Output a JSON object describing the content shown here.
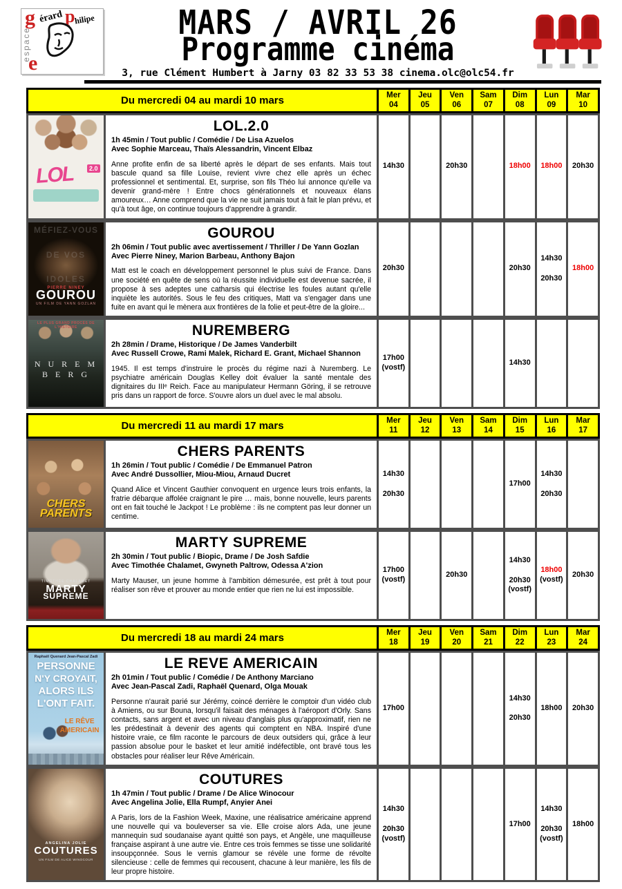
{
  "header": {
    "title_line1": "MARS / AVRIL 26",
    "title_line2": "Programme cinéma",
    "address": "3, rue Clément Humbert à Jarny  03 82 33 53 38  cinema.olc@olc54.fr",
    "logo": {
      "g": "g",
      "erard": "érard",
      "p": "p",
      "hilipe": "hilipe",
      "vertical": "espace",
      "e": "e"
    }
  },
  "colors": {
    "highlight_yellow": "#ffff00",
    "time_red": "#ee0000",
    "grid_gray": "#4e4e4e",
    "seat_red": "#c41a1a"
  },
  "sections": [
    {
      "label": "Du mercredi 04 au mardi 10 mars",
      "days": [
        {
          "abbr": "Mer",
          "num": "04"
        },
        {
          "abbr": "Jeu",
          "num": "05"
        },
        {
          "abbr": "Ven",
          "num": "06"
        },
        {
          "abbr": "Sam",
          "num": "07"
        },
        {
          "abbr": "Dim",
          "num": "08"
        },
        {
          "abbr": "Lun",
          "num": "09"
        },
        {
          "abbr": "Mar",
          "num": "10"
        }
      ],
      "movies": [
        {
          "title": "LOL.2.0",
          "meta": "1h 45min / Tout public / Comédie / De Lisa Azuelos",
          "cast": "Avec Sophie Marceau, Thaïs Alessandrin, Vincent Elbaz",
          "description": "Anne profite enfin de sa liberté après le départ de ses enfants. Mais tout bascule quand sa fille Louise, revient vivre chez elle après un échec professionnel et sentimental. Et, surprise, son fils Théo lui annonce qu'elle va devenir grand-mère ! Entre chocs générationnels et nouveaux élans amoureux… Anne comprend que la vie ne suit jamais tout à fait le plan prévu, et qu'à tout âge, on continue toujours d'apprendre à grandir.",
          "poster": {
            "cls": "p-lol",
            "lines": [
              {
                "cls": "pt-lol-big",
                "text": "LOL"
              },
              {
                "cls": "pt-lol-badge",
                "text": "2.0"
              }
            ]
          },
          "times": [
            [
              {
                "t": "14h30"
              }
            ],
            [],
            [
              {
                "t": "20h30"
              }
            ],
            [],
            [
              {
                "t": "18h00",
                "red": true
              }
            ],
            [
              {
                "t": "18h00",
                "red": true
              }
            ],
            [
              {
                "t": "20h30"
              }
            ]
          ]
        },
        {
          "title": "GOUROU",
          "meta": "2h 06min / Tout public avec avertissement / Thriller / De Yann Gozlan",
          "cast": "Avec Pierre Niney, Marion Barbeau, Anthony Bajon",
          "description": "Matt est le coach en développement personnel le plus suivi de France. Dans une société en quête de sens où la réussite individuelle est devenue sacrée, il propose à ses adeptes une catharsis qui électrise les foules autant qu'elle inquiète les autorités. Sous le feu des critiques, Matt va s'engager dans une fuite en avant qui le mènera aux frontières de la folie et peut-être de la gloire...",
          "poster": {
            "cls": "p-gourou",
            "lines": [
              {
                "cls": "pt-g1",
                "text": "MÉFIEZ-VOUS"
              },
              {
                "cls": "pt-g2",
                "text": "DE VOS"
              },
              {
                "cls": "pt-g3",
                "text": "IDOLES"
              },
              {
                "cls": "pt-g-credit",
                "text": "PIERRE NINEY"
              },
              {
                "cls": "pt-g-title",
                "text": "GOUROU"
              },
              {
                "cls": "pt-g-sub",
                "text": "UN FILM DE YANN GOZLAN"
              }
            ]
          },
          "times": [
            [
              {
                "t": "20h30"
              }
            ],
            [],
            [],
            [],
            [
              {
                "t": "20h30"
              }
            ],
            [
              {
                "t": "14h30"
              },
              {
                "t": "20h30"
              }
            ],
            [
              {
                "t": "18h00",
                "red": true
              }
            ]
          ]
        },
        {
          "title": "NUREMBERG",
          "meta": "2h 28min / Drame, Historique / De James Vanderbilt",
          "cast": "Avec Russell Crowe, Rami Malek, Richard E. Grant, Michael Shannon",
          "description": "1945. Il est temps d'instruire le procès du régime nazi à Nuremberg. Le psychiatre américain Douglas Kelley doit évaluer la santé mentale des dignitaires du IIIᵉ Reich. Face au manipulateur Hermann Göring, il se retrouve pris dans un rapport de force. S'ouvre alors un duel avec le mal absolu.",
          "poster": {
            "cls": "p-nuremberg",
            "lines": [
              {
                "cls": "pt-n-top",
                "text": "LE PLUS GRAND PROCÈS DE L'HISTOIRE"
              },
              {
                "cls": "pt-n-title",
                "text": "N U R E M B E R G"
              }
            ]
          },
          "times": [
            [
              {
                "t": "17h00"
              },
              {
                "t": "(vostf)"
              }
            ],
            [],
            [],
            [],
            [
              {
                "t": "14h30"
              }
            ],
            [],
            []
          ]
        }
      ]
    },
    {
      "label": "Du mercredi 11 au mardi 17 mars",
      "days": [
        {
          "abbr": "Mer",
          "num": "11"
        },
        {
          "abbr": "Jeu",
          "num": "12"
        },
        {
          "abbr": "Ven",
          "num": "13"
        },
        {
          "abbr": "Sam",
          "num": "14"
        },
        {
          "abbr": "Dim",
          "num": "15"
        },
        {
          "abbr": "Lun",
          "num": "16"
        },
        {
          "abbr": "Mar",
          "num": "17"
        }
      ],
      "movies": [
        {
          "title": "CHERS PARENTS",
          "meta": "1h 26min / Tout public / Comédie / De Emmanuel Patron",
          "cast": "Avec André Dussollier, Miou-Miou, Arnaud Ducret",
          "description": "Quand Alice et Vincent Gauthier convoquent en urgence leurs trois enfants, la fratrie débarque affolée craignant le pire … mais, bonne nouvelle, leurs parents ont en fait touché le Jackpot ! Le problème : ils ne comptent pas leur donner un centime.",
          "poster": {
            "cls": "p-chers",
            "lines": [
              {
                "cls": "pt-c1",
                "text": "CHERS"
              },
              {
                "cls": "pt-c2",
                "text": "PARENTS"
              }
            ]
          },
          "times": [
            [
              {
                "t": "14h30"
              },
              {
                "t": "20h30"
              }
            ],
            [],
            [],
            [],
            [
              {
                "t": "17h00"
              }
            ],
            [
              {
                "t": "14h30"
              },
              {
                "t": "20h30"
              }
            ],
            []
          ]
        },
        {
          "title": "MARTY SUPREME",
          "meta": "2h 30min / Tout public / Biopic, Drame / De Josh Safdie",
          "cast": "Avec Timothée Chalamet, Gwyneth Paltrow, Odessa A'zion",
          "description": "Marty Mauser, un jeune homme à l'ambition démesurée, est prêt à tout pour réaliser son rêve et prouver au monde entier que rien ne lui est impossible.",
          "poster": {
            "cls": "p-marty",
            "lines": [
              {
                "cls": "pt-m-credit",
                "text": "TIMOTHÉE CHALAMET"
              },
              {
                "cls": "pt-m1",
                "text": "MARTY"
              },
              {
                "cls": "pt-m2",
                "text": "SUPREME"
              }
            ]
          },
          "times": [
            [
              {
                "t": "17h00"
              },
              {
                "t": "(vostf)"
              }
            ],
            [],
            [
              {
                "t": "20h30"
              }
            ],
            [],
            [
              {
                "t": "14h30"
              },
              {
                "t": "20h30"
              },
              {
                "t": "(vostf)"
              }
            ],
            [
              {
                "t": "18h00",
                "red": true
              },
              {
                "t": "(vostf)"
              }
            ],
            [
              {
                "t": "20h30"
              }
            ]
          ]
        }
      ]
    },
    {
      "label": "Du mercredi 18  au mardi 24 mars",
      "days": [
        {
          "abbr": "Mer",
          "num": "18"
        },
        {
          "abbr": "Jeu",
          "num": "19"
        },
        {
          "abbr": "Ven",
          "num": "20"
        },
        {
          "abbr": "Sam",
          "num": "21"
        },
        {
          "abbr": "Dim",
          "num": "22"
        },
        {
          "abbr": "Lun",
          "num": "23"
        },
        {
          "abbr": "Mar",
          "num": "24"
        }
      ],
      "movies": [
        {
          "title": "LE REVE AMERICAIN",
          "meta": "2h 01min / Tout public / Comédie / De Anthony Marciano",
          "cast": "Avec Jean-Pascal Zadi, Raphaël Quenard, Olga Mouak",
          "description": "Personne n'aurait parié sur Jérémy, coincé derrière le comptoir d'un vidéo club à Amiens, ou sur Bouna, lorsqu'il faisait des ménages à l'aéroport d'Orly. Sans contacts, sans argent et avec un niveau d'anglais plus qu'approximatif, rien ne les prédestinait à devenir des agents qui comptent en NBA. Inspiré d'une histoire vraie, ce film raconte le parcours de deux outsiders qui, grâce à leur passion absolue pour le basket et leur amitié indéfectible, ont bravé tous les obstacles pour réaliser leur Rêve Américain.",
          "poster": {
            "cls": "p-reve",
            "lines": [
              {
                "cls": "pt-r-cred",
                "text": "Raphaël Quenard   Jean-Pascal Zadi"
              },
              {
                "cls": "pt-r1",
                "text": "PERSONNE"
              },
              {
                "cls": "pt-r2",
                "text": "N'Y CROYAIT,"
              },
              {
                "cls": "pt-r3",
                "text": "ALORS ILS"
              },
              {
                "cls": "pt-r4",
                "text": "L'ONT FAIT."
              },
              {
                "cls": "pt-r-o1",
                "text": "LE RÊVE"
              },
              {
                "cls": "pt-r-o2",
                "text": "AMERICAIN"
              }
            ]
          },
          "times": [
            [
              {
                "t": "17h00"
              }
            ],
            [],
            [],
            [],
            [
              {
                "t": "14h30"
              },
              {
                "t": "20h30"
              }
            ],
            [
              {
                "t": "18h00"
              }
            ],
            [
              {
                "t": "20h30"
              }
            ]
          ]
        },
        {
          "title": "COUTURES",
          "meta": "1h 47min / Tout public / Drame / De Alice Winocour",
          "cast": "Avec Angelina Jolie, Ella Rumpf, Anyier Anei",
          "description": "A Paris, lors de la Fashion Week, Maxine, une réalisatrice américaine apprend une nouvelle qui va bouleverser sa vie. Elle croise alors Ada, une jeune mannequin sud soudanaise ayant quitté son pays, et Angèle, une maquilleuse française aspirant à une autre vie. Entre ces trois femmes se tisse une solidarité insoupçonnée. Sous le vernis glamour se révèle une forme de révolte silencieuse : celle de femmes qui recousent, chacune à leur manière, les fils de leur propre histoire.",
          "poster": {
            "cls": "p-coutures",
            "lines": [
              {
                "cls": "pt-co-cred",
                "text": "ANGELINA JOLIE"
              },
              {
                "cls": "pt-co-title",
                "text": "COUTURES"
              },
              {
                "cls": "pt-co-sub",
                "text": "UN FILM DE ALICE WINOCOUR"
              }
            ]
          },
          "times": [
            [
              {
                "t": "14h30"
              },
              {
                "t": "20h30"
              },
              {
                "t": "(vostf)"
              }
            ],
            [],
            [],
            [],
            [
              {
                "t": "17h00"
              }
            ],
            [
              {
                "t": "14h30"
              },
              {
                "t": "20h30"
              },
              {
                "t": "(vostf)"
              }
            ],
            [
              {
                "t": "18h00"
              }
            ]
          ]
        }
      ]
    }
  ]
}
